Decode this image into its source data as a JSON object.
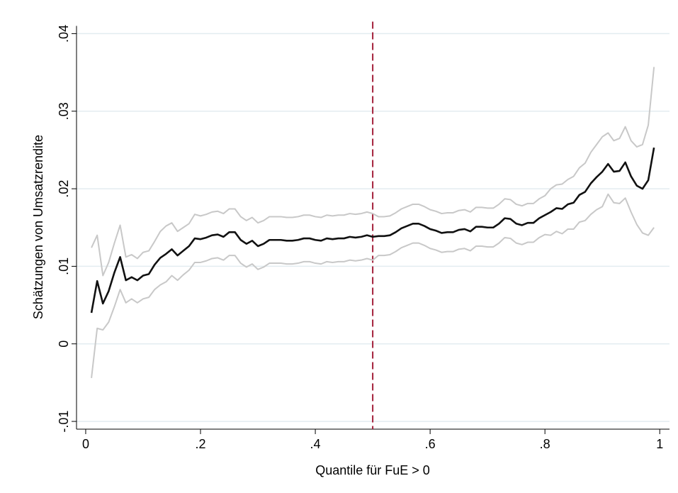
{
  "chart_data": {
    "type": "line",
    "x_label": "Quantile für FuE > 0",
    "y_label": "Schätzungen von Umsatzrendite",
    "x": [
      0.01,
      0.02,
      0.03,
      0.04,
      0.05,
      0.06,
      0.07,
      0.08,
      0.09,
      0.1,
      0.11,
      0.12,
      0.13,
      0.14,
      0.15,
      0.16,
      0.17,
      0.18,
      0.19,
      0.2,
      0.21,
      0.22,
      0.23,
      0.24,
      0.25,
      0.26,
      0.27,
      0.28,
      0.29,
      0.3,
      0.31,
      0.32,
      0.33,
      0.34,
      0.35,
      0.36,
      0.37,
      0.38,
      0.39,
      0.4,
      0.41,
      0.42,
      0.43,
      0.44,
      0.45,
      0.46,
      0.47,
      0.48,
      0.49,
      0.5,
      0.51,
      0.52,
      0.53,
      0.54,
      0.55,
      0.56,
      0.57,
      0.58,
      0.59,
      0.6,
      0.61,
      0.62,
      0.63,
      0.64,
      0.65,
      0.66,
      0.67,
      0.68,
      0.69,
      0.7,
      0.71,
      0.72,
      0.73,
      0.74,
      0.75,
      0.76,
      0.77,
      0.78,
      0.79,
      0.8,
      0.81,
      0.82,
      0.83,
      0.84,
      0.85,
      0.86,
      0.87,
      0.88,
      0.89,
      0.9,
      0.91,
      0.92,
      0.93,
      0.94,
      0.95,
      0.96,
      0.97,
      0.98,
      0.99
    ],
    "series": [
      {
        "color": "#c8c8c8",
        "values": [
          0.0124,
          0.014,
          0.0088,
          0.0105,
          0.013,
          0.0153,
          0.0112,
          0.0115,
          0.011,
          0.0118,
          0.012,
          0.0132,
          0.0145,
          0.0152,
          0.0156,
          0.0145,
          0.015,
          0.0155,
          0.0167,
          0.0165,
          0.0167,
          0.017,
          0.0171,
          0.0168,
          0.0174,
          0.0174,
          0.0164,
          0.0159,
          0.0163,
          0.0156,
          0.0159,
          0.0164,
          0.0164,
          0.0164,
          0.0163,
          0.0163,
          0.0164,
          0.0166,
          0.0166,
          0.0164,
          0.0163,
          0.0166,
          0.0165,
          0.0166,
          0.0166,
          0.0168,
          0.0167,
          0.0168,
          0.017,
          0.0168,
          0.0164,
          0.0164,
          0.0165,
          0.0169,
          0.0174,
          0.0177,
          0.018,
          0.018,
          0.0177,
          0.0173,
          0.0171,
          0.0168,
          0.0169,
          0.0169,
          0.0172,
          0.0173,
          0.017,
          0.0176,
          0.0176,
          0.0175,
          0.0175,
          0.018,
          0.0187,
          0.0186,
          0.018,
          0.0178,
          0.0181,
          0.0181,
          0.0187,
          0.0191,
          0.02,
          0.0205,
          0.0206,
          0.0212,
          0.0216,
          0.0227,
          0.0233,
          0.0247,
          0.0257,
          0.0267,
          0.0272,
          0.0262,
          0.0265,
          0.028,
          0.0262,
          0.0254,
          0.0257,
          0.0282,
          0.0357
        ]
      },
      {
        "color": "#c8c8c8",
        "values": [
          -0.0044,
          0.002,
          0.0018,
          0.0028,
          0.0048,
          0.007,
          0.0053,
          0.0058,
          0.0053,
          0.0058,
          0.006,
          0.007,
          0.0076,
          0.008,
          0.0088,
          0.0082,
          0.0089,
          0.0095,
          0.0105,
          0.0105,
          0.0107,
          0.011,
          0.0111,
          0.0108,
          0.0114,
          0.0114,
          0.0104,
          0.0099,
          0.0103,
          0.0096,
          0.0099,
          0.0104,
          0.0104,
          0.0104,
          0.0103,
          0.0103,
          0.0104,
          0.0106,
          0.0106,
          0.0104,
          0.0103,
          0.0106,
          0.0105,
          0.0106,
          0.0106,
          0.0108,
          0.0107,
          0.0108,
          0.011,
          0.0108,
          0.0114,
          0.0114,
          0.0115,
          0.0119,
          0.0124,
          0.0127,
          0.013,
          0.013,
          0.0127,
          0.0123,
          0.0121,
          0.0118,
          0.0119,
          0.0119,
          0.0122,
          0.0123,
          0.012,
          0.0126,
          0.0126,
          0.0125,
          0.0125,
          0.013,
          0.0137,
          0.0136,
          0.013,
          0.0128,
          0.0131,
          0.0131,
          0.0137,
          0.0141,
          0.014,
          0.0145,
          0.0142,
          0.0148,
          0.0148,
          0.0157,
          0.0159,
          0.0167,
          0.0173,
          0.0177,
          0.0193,
          0.0182,
          0.0181,
          0.0188,
          0.017,
          0.0154,
          0.0143,
          0.014,
          0.015
        ]
      },
      {
        "color": "#111111",
        "values": [
          0.004,
          0.0081,
          0.0052,
          0.0068,
          0.0092,
          0.0112,
          0.0082,
          0.0086,
          0.0082,
          0.0088,
          0.009,
          0.0102,
          0.0111,
          0.0116,
          0.0122,
          0.0114,
          0.012,
          0.0126,
          0.0136,
          0.0135,
          0.0137,
          0.014,
          0.0141,
          0.0138,
          0.0144,
          0.0144,
          0.0134,
          0.0129,
          0.0133,
          0.0126,
          0.0129,
          0.0134,
          0.0134,
          0.0134,
          0.0133,
          0.0133,
          0.0134,
          0.0136,
          0.0136,
          0.0134,
          0.0133,
          0.0136,
          0.0135,
          0.0136,
          0.0136,
          0.0138,
          0.0137,
          0.0138,
          0.014,
          0.0138,
          0.0139,
          0.0139,
          0.014,
          0.0144,
          0.0149,
          0.0152,
          0.0155,
          0.0155,
          0.0152,
          0.0148,
          0.0146,
          0.0143,
          0.0144,
          0.0144,
          0.0147,
          0.0148,
          0.0145,
          0.0151,
          0.0151,
          0.015,
          0.015,
          0.0155,
          0.0162,
          0.0161,
          0.0155,
          0.0153,
          0.0156,
          0.0156,
          0.0162,
          0.0166,
          0.017,
          0.0175,
          0.0174,
          0.018,
          0.0182,
          0.0192,
          0.0196,
          0.0207,
          0.0215,
          0.0222,
          0.0232,
          0.0222,
          0.0223,
          0.0234,
          0.0216,
          0.0204,
          0.02,
          0.0211,
          0.0253
        ]
      }
    ],
    "xlim": [
      -0.016,
      1.017
    ],
    "ylim": [
      -0.011,
      0.041
    ],
    "xticks": [
      0,
      {
        "value": 0.2,
        "label": ".2"
      },
      {
        "value": 0.4,
        "label": ".4"
      },
      {
        "value": 0.6,
        "label": ".6"
      },
      {
        "value": 0.8,
        "label": ".8"
      },
      1
    ],
    "yticks": [
      {
        "value": -0.01,
        "label": "-.01"
      },
      0,
      {
        "value": 0.01,
        "label": ".01"
      },
      {
        "value": 0.02,
        "label": ".02"
      },
      {
        "value": 0.03,
        "label": ".03"
      },
      {
        "value": 0.04,
        "label": ".04"
      }
    ],
    "grid": true,
    "xline": {
      "value": 0.5,
      "color": "#a3203a"
    }
  }
}
